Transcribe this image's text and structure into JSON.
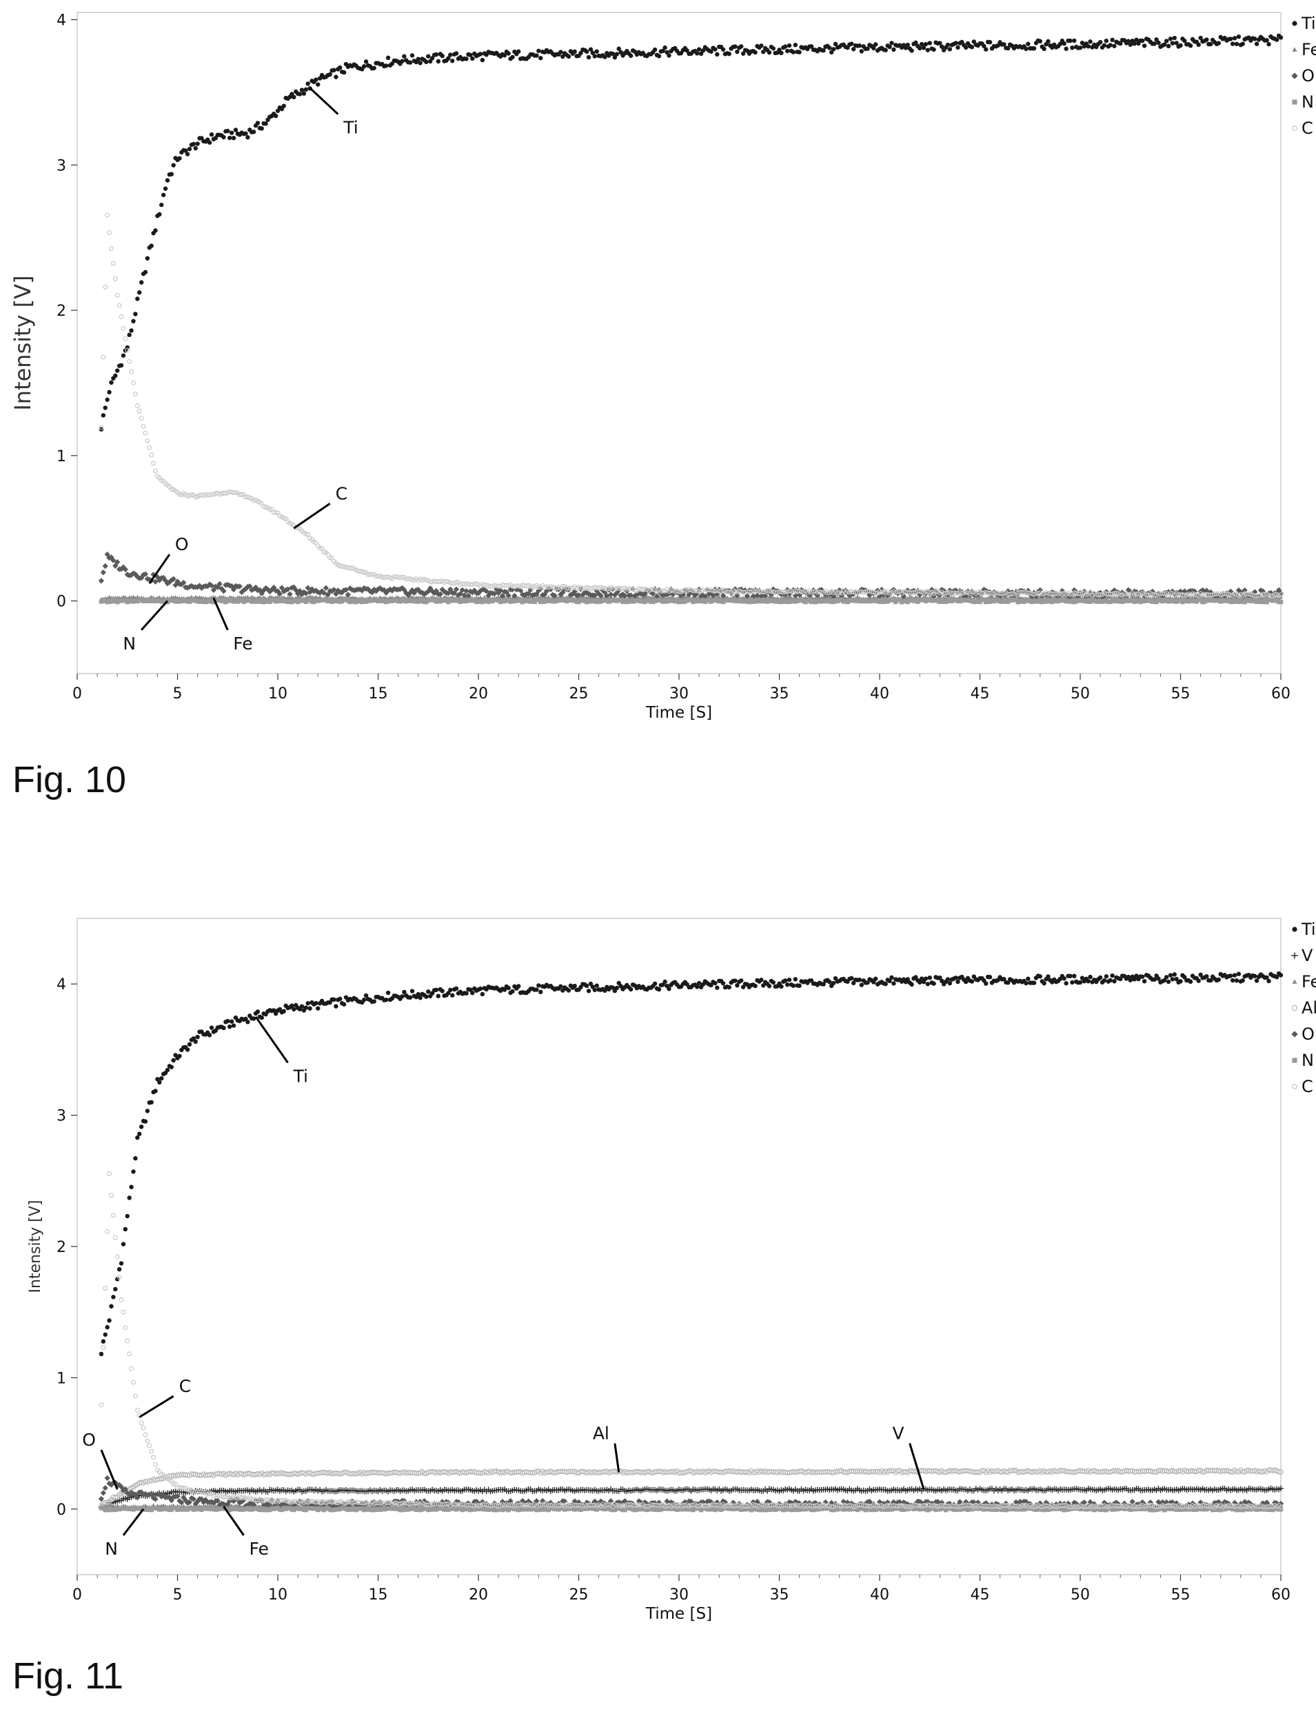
{
  "figures": [
    {
      "caption": "Fig. 10",
      "chart_data": {
        "type": "scatter",
        "title": "",
        "xlabel": "Time [S]",
        "ylabel": "Intensity [V]",
        "xlim": [
          0,
          60
        ],
        "ylim": [
          -0.5,
          4.05
        ],
        "xticks": [
          0,
          5,
          10,
          15,
          20,
          25,
          30,
          35,
          40,
          45,
          50,
          55,
          60
        ],
        "yticks": [
          0,
          1,
          2,
          3,
          4
        ],
        "grid": false,
        "legend_position": "right",
        "x_start": 1.2,
        "x_step": 0.1,
        "series": [
          {
            "name": "Ti",
            "color": "#1a1a1a",
            "marker": "dot",
            "knots": [
              [
                1.2,
                1.2
              ],
              [
                1.6,
                1.45
              ],
              [
                2.5,
                1.75
              ],
              [
                3.5,
                2.35
              ],
              [
                4.5,
                2.9
              ],
              [
                5.0,
                3.05
              ],
              [
                6.0,
                3.15
              ],
              [
                7.0,
                3.2
              ],
              [
                8.5,
                3.22
              ],
              [
                9.5,
                3.3
              ],
              [
                10.5,
                3.45
              ],
              [
                12.0,
                3.58
              ],
              [
                13.5,
                3.67
              ],
              [
                16.0,
                3.72
              ],
              [
                20.0,
                3.75
              ],
              [
                30.0,
                3.78
              ],
              [
                40.0,
                3.81
              ],
              [
                50.0,
                3.83
              ],
              [
                60.0,
                3.86
              ]
            ]
          },
          {
            "name": "Fe",
            "color": "#8a8a8a",
            "marker": "triangle",
            "knots": [
              [
                1.2,
                0.02
              ],
              [
                60.0,
                0.02
              ]
            ]
          },
          {
            "name": "O",
            "color": "#5a5a5a",
            "marker": "diamond",
            "knots": [
              [
                1.2,
                0.15
              ],
              [
                1.5,
                0.3
              ],
              [
                2.5,
                0.2
              ],
              [
                4.0,
                0.15
              ],
              [
                6.0,
                0.1
              ],
              [
                10.0,
                0.07
              ],
              [
                20.0,
                0.06
              ],
              [
                60.0,
                0.05
              ]
            ]
          },
          {
            "name": "N",
            "color": "#9a9a9a",
            "marker": "square",
            "knots": [
              [
                1.2,
                0.0
              ],
              [
                60.0,
                0.0
              ]
            ]
          },
          {
            "name": "C",
            "color": "#c8c8c8",
            "marker": "circle",
            "knots": [
              [
                1.2,
                1.2
              ],
              [
                1.5,
                2.65
              ],
              [
                2.0,
                2.1
              ],
              [
                3.0,
                1.35
              ],
              [
                4.0,
                0.85
              ],
              [
                5.0,
                0.74
              ],
              [
                6.0,
                0.72
              ],
              [
                7.5,
                0.75
              ],
              [
                8.5,
                0.72
              ],
              [
                10.0,
                0.6
              ],
              [
                11.5,
                0.45
              ],
              [
                13.0,
                0.25
              ],
              [
                15.0,
                0.17
              ],
              [
                20.0,
                0.11
              ],
              [
                30.0,
                0.07
              ],
              [
                60.0,
                0.04
              ]
            ]
          }
        ],
        "annotations": [
          {
            "text": "Ti",
            "x": 11.6,
            "y": 3.53,
            "tx": 13.0,
            "ty": 3.35
          },
          {
            "text": "C",
            "x": 10.8,
            "y": 0.5,
            "tx": 12.6,
            "ty": 0.67
          },
          {
            "text": "O",
            "x": 3.6,
            "y": 0.12,
            "tx": 4.6,
            "ty": 0.32
          },
          {
            "text": "N",
            "x": 4.5,
            "y": 0.0,
            "tx": 3.2,
            "ty": -0.2
          },
          {
            "text": "Fe",
            "x": 6.8,
            "y": 0.02,
            "tx": 7.5,
            "ty": -0.2
          }
        ]
      }
    },
    {
      "caption": "Fig. 11",
      "chart_data": {
        "type": "scatter",
        "title": "",
        "xlabel": "Time [S]",
        "ylabel": "Intensity [V]",
        "xlim": [
          0,
          60
        ],
        "ylim": [
          -0.5,
          4.5
        ],
        "xticks": [
          0,
          5,
          10,
          15,
          20,
          25,
          30,
          35,
          40,
          45,
          50,
          55,
          60
        ],
        "yticks": [
          0,
          1,
          2,
          3,
          4
        ],
        "grid": false,
        "legend_position": "right",
        "x_start": 1.2,
        "x_step": 0.1,
        "series": [
          {
            "name": "Ti",
            "color": "#1a1a1a",
            "marker": "dot",
            "knots": [
              [
                1.2,
                1.2
              ],
              [
                1.6,
                1.45
              ],
              [
                2.2,
                1.9
              ],
              [
                3.0,
                2.8
              ],
              [
                4.0,
                3.25
              ],
              [
                5.0,
                3.45
              ],
              [
                6.0,
                3.6
              ],
              [
                8.0,
                3.72
              ],
              [
                10.0,
                3.8
              ],
              [
                15.0,
                3.9
              ],
              [
                20.0,
                3.95
              ],
              [
                30.0,
                3.99
              ],
              [
                40.0,
                4.02
              ],
              [
                60.0,
                4.05
              ]
            ]
          },
          {
            "name": "V",
            "color": "#2a2a2a",
            "marker": "plus",
            "knots": [
              [
                1.2,
                0.02
              ],
              [
                2.0,
                0.06
              ],
              [
                3.0,
                0.1
              ],
              [
                5.0,
                0.13
              ],
              [
                10.0,
                0.14
              ],
              [
                60.0,
                0.15
              ]
            ]
          },
          {
            "name": "Fe",
            "color": "#8a8a8a",
            "marker": "triangle",
            "knots": [
              [
                1.2,
                0.02
              ],
              [
                60.0,
                0.02
              ]
            ]
          },
          {
            "name": "Al",
            "color": "#b5b5b5",
            "marker": "open",
            "knots": [
              [
                1.2,
                0.03
              ],
              [
                2.0,
                0.1
              ],
              [
                3.0,
                0.19
              ],
              [
                5.0,
                0.26
              ],
              [
                10.0,
                0.27
              ],
              [
                20.0,
                0.28
              ],
              [
                60.0,
                0.29
              ]
            ]
          },
          {
            "name": "O",
            "color": "#5a5a5a",
            "marker": "diamond",
            "knots": [
              [
                1.2,
                0.1
              ],
              [
                1.5,
                0.22
              ],
              [
                2.5,
                0.12
              ],
              [
                4.0,
                0.09
              ],
              [
                6.0,
                0.06
              ],
              [
                10.0,
                0.04
              ],
              [
                60.0,
                0.03
              ]
            ]
          },
          {
            "name": "N",
            "color": "#9a9a9a",
            "marker": "square",
            "knots": [
              [
                1.2,
                0.0
              ],
              [
                60.0,
                0.0
              ]
            ]
          },
          {
            "name": "C",
            "color": "#c8c8c8",
            "marker": "circle",
            "knots": [
              [
                1.2,
                0.8
              ],
              [
                1.6,
                2.55
              ],
              [
                2.2,
                1.6
              ],
              [
                3.0,
                0.75
              ],
              [
                4.0,
                0.3
              ],
              [
                5.0,
                0.17
              ],
              [
                7.0,
                0.1
              ],
              [
                10.0,
                0.06
              ],
              [
                20.0,
                0.03
              ],
              [
                60.0,
                0.02
              ]
            ]
          }
        ],
        "annotations": [
          {
            "text": "Ti",
            "x": 8.9,
            "y": 3.75,
            "tx": 10.5,
            "ty": 3.4
          },
          {
            "text": "C",
            "x": 3.1,
            "y": 0.7,
            "tx": 4.8,
            "ty": 0.86
          },
          {
            "text": "Al",
            "x": 27.0,
            "y": 0.28,
            "tx": 26.8,
            "ty": 0.5
          },
          {
            "text": "V",
            "x": 42.2,
            "y": 0.15,
            "tx": 41.5,
            "ty": 0.5
          },
          {
            "text": "O",
            "x": 2.0,
            "y": 0.15,
            "tx": 1.2,
            "ty": 0.45
          },
          {
            "text": "N",
            "x": 3.3,
            "y": 0.0,
            "tx": 2.3,
            "ty": -0.2
          },
          {
            "text": "Fe",
            "x": 7.3,
            "y": 0.02,
            "tx": 8.3,
            "ty": -0.2
          }
        ]
      }
    }
  ]
}
